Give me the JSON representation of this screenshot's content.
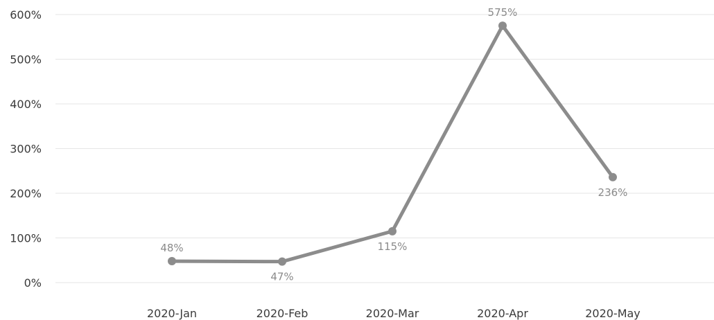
{
  "chart_data": {
    "type": "line",
    "categories": [
      "2020-Jan",
      "2020-Feb",
      "2020-Mar",
      "2020-Apr",
      "2020-May"
    ],
    "series": [
      {
        "values": [
          48,
          47,
          115,
          575,
          236
        ],
        "data_labels": [
          "48%",
          "47%",
          "115%",
          "575%",
          "236%"
        ],
        "color": "#8c8c8c"
      }
    ],
    "y_ticks": [
      0,
      100,
      200,
      300,
      400,
      500,
      600
    ],
    "y_tick_labels": [
      "0%",
      "100%",
      "200%",
      "300%",
      "400%",
      "500%",
      "600%"
    ],
    "ylim": [
      0,
      600
    ],
    "grid": true,
    "title": "",
    "xlabel": "",
    "ylabel": ""
  }
}
